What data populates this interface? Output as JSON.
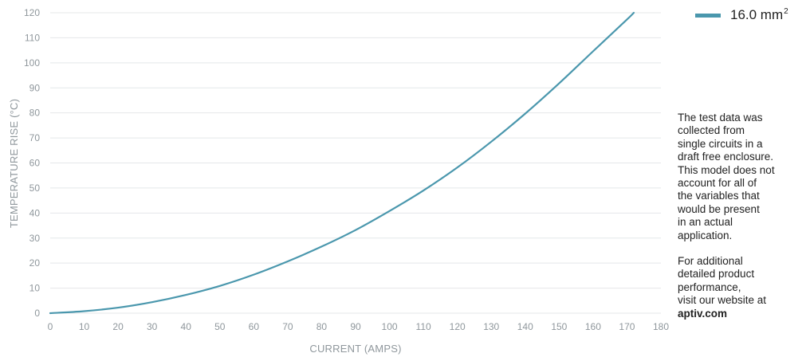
{
  "chart_data": {
    "type": "line",
    "xlabel": "CURRENT (AMPS)",
    "ylabel": "TEMPERATURE RISE (°C)",
    "xlim": [
      0,
      180
    ],
    "ylim": [
      0,
      120
    ],
    "xticks": [
      "0",
      "10",
      "20",
      "30",
      "40",
      "50",
      "60",
      "70",
      "80",
      "90",
      "100",
      "110",
      "120",
      "130",
      "140",
      "150",
      "160",
      "170",
      "180"
    ],
    "yticks": [
      "0",
      "10",
      "20",
      "30",
      "40",
      "50",
      "60",
      "70",
      "80",
      "90",
      "100",
      "110",
      "120"
    ],
    "grid": "horizontal",
    "legend_position": "top-right",
    "series": [
      {
        "name": "16.0 mm2",
        "name_base": "16.0 mm",
        "name_sup": "2",
        "color": "#4a97ad",
        "x": [
          0,
          10,
          20,
          30,
          40,
          50,
          60,
          70,
          80,
          90,
          100,
          110,
          120,
          130,
          140,
          150,
          160,
          170,
          172
        ],
        "y": [
          0,
          0.8,
          2.2,
          4.4,
          7.3,
          10.9,
          15.4,
          20.7,
          26.6,
          33.2,
          40.8,
          49.0,
          58.2,
          68.5,
          79.7,
          91.8,
          104.6,
          117.3,
          120
        ]
      }
    ]
  },
  "notes": {
    "paragraph1": "The test data was\ncollected from\nsingle circuits in a\ndraft free enclosure.\nThis model does not\naccount for all of\nthe variables that\nwould be present\nin an actual\napplication.",
    "paragraph2": "For additional\ndetailed product\nperformance,\nvisit our website at",
    "website": "aptiv.com"
  }
}
